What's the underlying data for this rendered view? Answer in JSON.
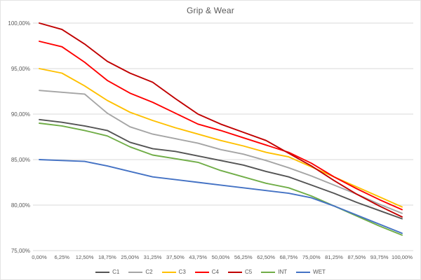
{
  "chart_data": {
    "type": "line",
    "title": "Grip & Wear",
    "xlabel": "",
    "ylabel": "",
    "x_tick_labels": [
      "0,00%",
      "6,25%",
      "12,50%",
      "18,75%",
      "25,00%",
      "31,25%",
      "37,50%",
      "43,75%",
      "50,00%",
      "56,25%",
      "62,50%",
      "68,75%",
      "75,00%",
      "81,25%",
      "87,50%",
      "93,75%",
      "100,00%"
    ],
    "x_values": [
      0,
      6.25,
      12.5,
      18.75,
      25,
      31.25,
      37.5,
      43.75,
      50,
      56.25,
      62.5,
      68.75,
      75,
      81.25,
      87.5,
      93.75,
      100
    ],
    "y_tick_labels": [
      "100,00%",
      "95,00%",
      "90,00%",
      "85,00%",
      "80,00%",
      "75,00%"
    ],
    "y_tick_values": [
      100,
      95,
      90,
      85,
      80,
      75
    ],
    "ylim": [
      75,
      100
    ],
    "grid": true,
    "legend_position": "bottom",
    "text_color": "#595959",
    "gridline_color": "#D9D9D9",
    "series": [
      {
        "name": "C1",
        "color": "#545454",
        "values": [
          89.4,
          89.1,
          88.7,
          88.2,
          86.9,
          86.2,
          85.9,
          85.4,
          84.9,
          84.4,
          83.7,
          83.1,
          82.2,
          81.3,
          80.3,
          79.4,
          78.5
        ]
      },
      {
        "name": "C2",
        "color": "#A5A5A5",
        "values": [
          92.6,
          92.4,
          92.2,
          90.1,
          88.6,
          87.8,
          87.3,
          86.8,
          86.1,
          85.6,
          84.9,
          84.1,
          83.2,
          82.2,
          81.2,
          80.1,
          79.1
        ]
      },
      {
        "name": "C3",
        "color": "#FFC000",
        "values": [
          95.0,
          94.5,
          93.1,
          91.5,
          90.2,
          89.3,
          88.5,
          87.8,
          87.1,
          86.5,
          85.8,
          85.3,
          84.2,
          83.1,
          82.0,
          80.9,
          79.8
        ]
      },
      {
        "name": "C4",
        "color": "#FF0000",
        "values": [
          98.0,
          97.4,
          95.7,
          93.7,
          92.3,
          91.3,
          90.1,
          88.9,
          88.2,
          87.4,
          86.6,
          85.8,
          84.6,
          83.1,
          81.8,
          80.6,
          79.5
        ]
      },
      {
        "name": "C5",
        "color": "#C00000",
        "values": [
          100.0,
          99.3,
          97.7,
          95.8,
          94.5,
          93.5,
          91.7,
          90.0,
          88.9,
          88.0,
          87.1,
          85.7,
          84.3,
          82.7,
          81.2,
          79.9,
          78.7
        ]
      },
      {
        "name": "INT",
        "color": "#70AD47",
        "values": [
          89.0,
          88.7,
          88.2,
          87.6,
          86.4,
          85.5,
          85.1,
          84.7,
          83.8,
          83.1,
          82.4,
          81.9,
          81.0,
          79.9,
          78.8,
          77.7,
          76.7
        ]
      },
      {
        "name": "WET",
        "color": "#4472C4",
        "values": [
          85.0,
          84.9,
          84.8,
          84.3,
          83.7,
          83.1,
          82.8,
          82.5,
          82.2,
          81.9,
          81.6,
          81.3,
          80.8,
          79.9,
          78.9,
          77.9,
          76.9
        ]
      }
    ]
  }
}
